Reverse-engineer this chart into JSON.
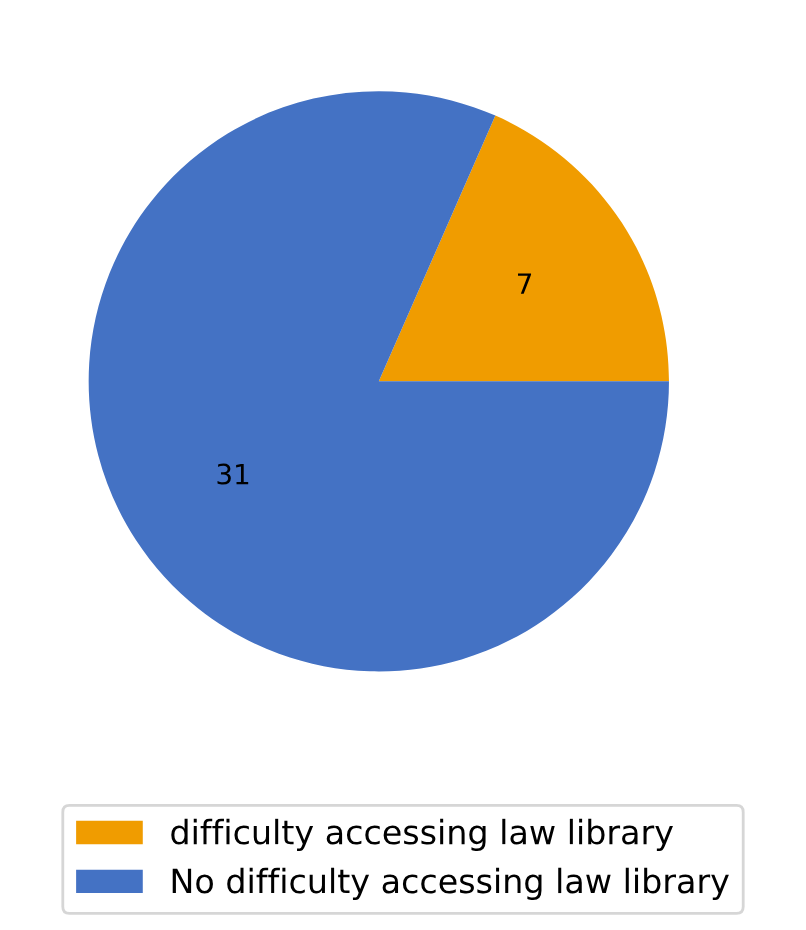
{
  "chart_data": {
    "type": "pie",
    "categories": [
      "difficulty accessing law library",
      "No difficulty accessing law library"
    ],
    "values": [
      7,
      31
    ],
    "colors": [
      "#f09c00",
      "#4472c4"
    ],
    "data_labels": true,
    "legend": "bottom"
  }
}
